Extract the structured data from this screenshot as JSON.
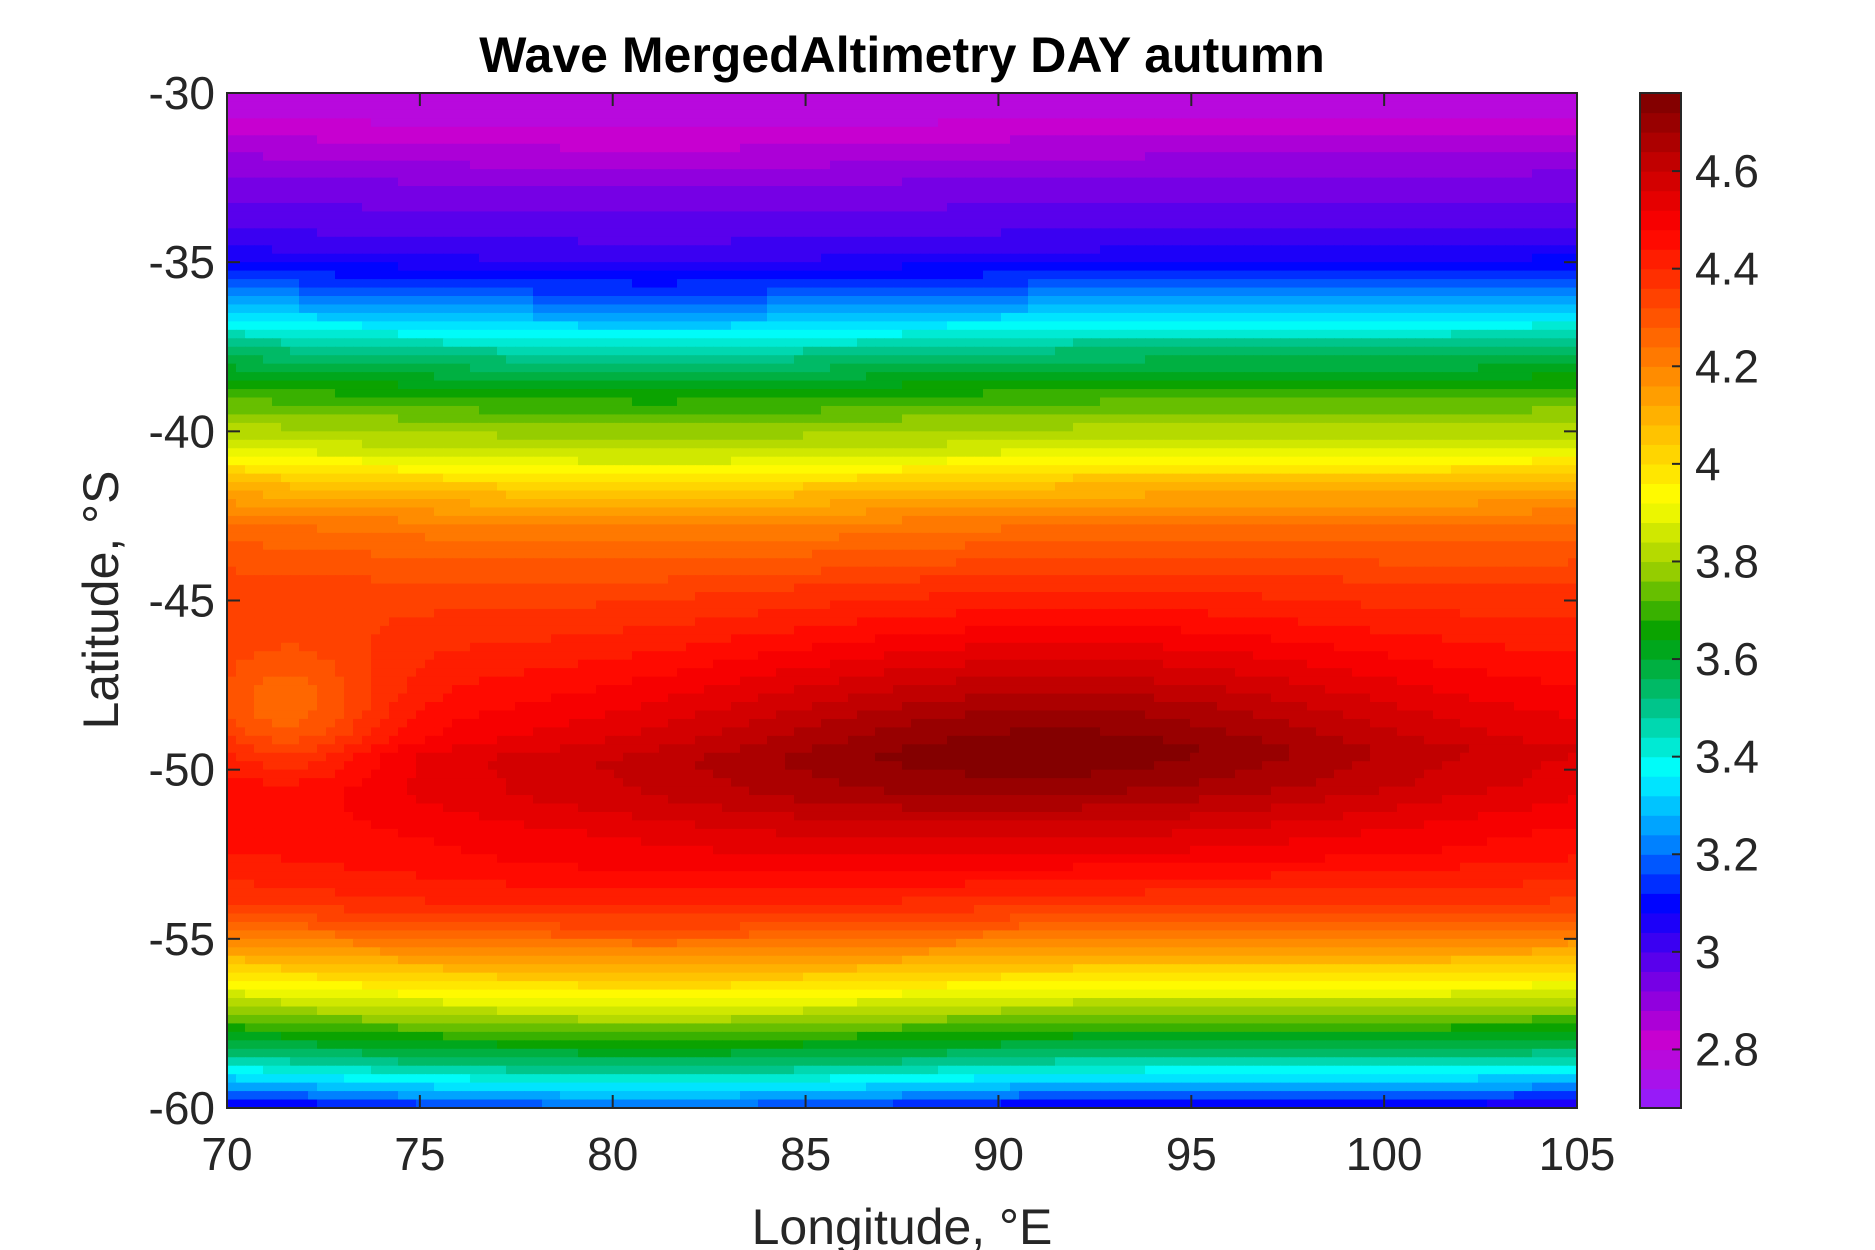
{
  "chart_data": {
    "type": "heatmap",
    "title": "Wave MergedAltimetry DAY autumn",
    "xlabel": "Longitude, °E",
    "ylabel": "Latitude, °S",
    "xlim": [
      70,
      105
    ],
    "ylim": [
      -60,
      -30
    ],
    "xticks": [
      70,
      75,
      80,
      85,
      90,
      95,
      100,
      105
    ],
    "yticks": [
      -30,
      -35,
      -40,
      -45,
      -50,
      -55,
      -60
    ],
    "colorbar": {
      "range": [
        2.68,
        4.76
      ],
      "ticks": [
        2.8,
        3,
        3.2,
        3.4,
        3.6,
        3.8,
        4,
        4.2,
        4.4,
        4.6
      ],
      "tick_labels": [
        "2.8",
        "3",
        "3.2",
        "3.4",
        "3.6",
        "3.8",
        "4",
        "4.2",
        "4.4",
        "4.6"
      ],
      "colormap": [
        "#8f20ff",
        "#c800d0",
        "#6a00e8",
        "#0000ff",
        "#0090ff",
        "#00ffff",
        "#00c080",
        "#00a000",
        "#a0d000",
        "#ffff00",
        "#ffc000",
        "#ff8000",
        "#ff4000",
        "#ff0000",
        "#c00000",
        "#7a0000"
      ]
    },
    "contour_levels_step": 0.04,
    "latitude_profile": {
      "latitudes": [
        -30,
        -32,
        -34,
        -35,
        -36,
        -37,
        -38,
        -39,
        -40,
        -41,
        -42,
        -43,
        -44,
        -46,
        -48,
        -49,
        -50,
        -52,
        -53,
        -54,
        -55,
        -56,
        -57,
        -58,
        -59,
        -60
      ],
      "values": [
        2.78,
        2.92,
        3.02,
        3.14,
        3.3,
        3.5,
        3.64,
        3.76,
        3.86,
        4.06,
        4.2,
        4.32,
        4.42,
        4.56,
        4.7,
        4.76,
        4.72,
        4.56,
        4.44,
        4.3,
        4.12,
        3.92,
        3.72,
        3.52,
        3.24,
        2.9
      ]
    },
    "maximum": {
      "lon": 91,
      "lat": -48.8,
      "value": 4.76
    },
    "local_anomaly": {
      "lon": 71.5,
      "lat": -48,
      "value": 4.26
    }
  }
}
